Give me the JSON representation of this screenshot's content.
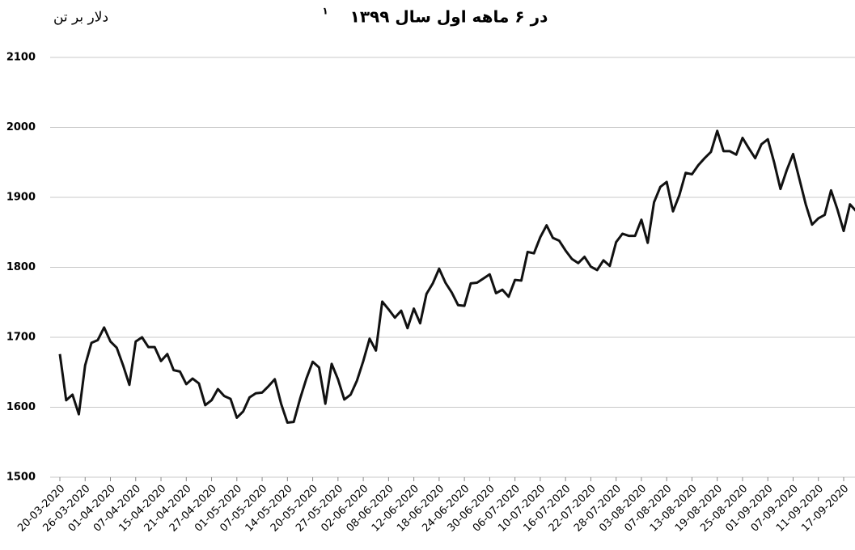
{
  "chart_data": {
    "type": "line",
    "title": "در ۶ ماهه اول سال ۱۳۹۹",
    "title_footnote": "۱",
    "y_label": "دلار بر تن",
    "categories": [
      "20-03-2020",
      null,
      null,
      null,
      "26-03-2020",
      null,
      null,
      null,
      "01-04-2020",
      null,
      null,
      null,
      "07-04-2020",
      null,
      null,
      null,
      "15-04-2020",
      null,
      null,
      null,
      "21-04-2020",
      null,
      null,
      null,
      "27-04-2020",
      null,
      null,
      null,
      "01-05-2020",
      null,
      null,
      null,
      "07-05-2020",
      null,
      null,
      null,
      "14-05-2020",
      null,
      null,
      null,
      "20-05-2020",
      null,
      null,
      null,
      "27-05-2020",
      null,
      null,
      null,
      "02-06-2020",
      null,
      null,
      null,
      "08-06-2020",
      null,
      null,
      null,
      "12-06-2020",
      null,
      null,
      null,
      "18-06-2020",
      null,
      null,
      null,
      "24-06-2020",
      null,
      null,
      null,
      "30-06-2020",
      null,
      null,
      null,
      "06-07-2020",
      null,
      null,
      null,
      "10-07-2020",
      null,
      null,
      null,
      "16-07-2020",
      null,
      null,
      null,
      "22-07-2020",
      null,
      null,
      null,
      "28-07-2020",
      null,
      null,
      null,
      "03-08-2020",
      null,
      null,
      null,
      "07-08-2020",
      null,
      null,
      null,
      "13-08-2020",
      null,
      null,
      null,
      "19-08-2020",
      null,
      null,
      null,
      "25-08-2020",
      null,
      null,
      null,
      "01-09-2020",
      null,
      null,
      null,
      "07-09-2020",
      null,
      null,
      null,
      "11-09-2020",
      null,
      null,
      null,
      "17-09-2020",
      null,
      null
    ],
    "series": [
      {
        "color": "#111111",
        "values": [
          1676,
          1610,
          1618,
          1590,
          1660,
          1692,
          1696,
          1714,
          1694,
          1685,
          1660,
          1632,
          1694,
          1700,
          1686,
          1686,
          1666,
          1676,
          1653,
          1651,
          1633,
          1641,
          1634,
          1603,
          1610,
          1626,
          1616,
          1612,
          1585,
          1594,
          1614,
          1620,
          1621,
          1630,
          1640,
          1605,
          1578,
          1579,
          1612,
          1641,
          1665,
          1657,
          1605,
          1662,
          1640,
          1611,
          1618,
          1638,
          1666,
          1698,
          1681,
          1751,
          1740,
          1728,
          1738,
          1713,
          1741,
          1720,
          1762,
          1777,
          1798,
          1778,
          1764,
          1746,
          1745,
          1777,
          1778,
          1784,
          1790,
          1763,
          1768,
          1758,
          1782,
          1781,
          1822,
          1820,
          1843,
          1860,
          1842,
          1838,
          1824,
          1812,
          1806,
          1815,
          1801,
          1796,
          1810,
          1802,
          1836,
          1848,
          1845,
          1845,
          1868,
          1835,
          1893,
          1915,
          1922,
          1880,
          1903,
          1935,
          1933,
          1946,
          1956,
          1965,
          1995,
          1966,
          1966,
          1961,
          1985,
          1970,
          1956,
          1976,
          1983,
          1950,
          1912,
          1939,
          1962,
          1926,
          1890,
          1861,
          1870,
          1875,
          1910,
          1883,
          1852,
          1890,
          1880
        ]
      }
    ],
    "ylim": [
      1500,
      2100
    ],
    "yticks": [
      1500,
      1600,
      1700,
      1800,
      1900,
      2000,
      2100
    ],
    "grid": true
  }
}
